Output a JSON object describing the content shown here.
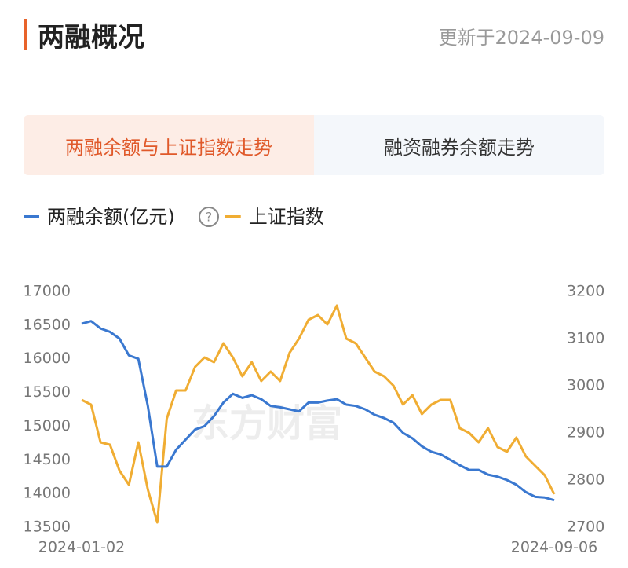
{
  "header": {
    "title": "两融概况",
    "updated": "更新于2024-09-09"
  },
  "tabs": [
    "两融余额与上证指数走势",
    "融资融券余额走势"
  ],
  "chart_data": {
    "type": "line",
    "watermark": "东方财富",
    "categories": [
      "2024-01-02",
      null,
      null,
      null,
      null,
      null,
      null,
      null,
      null,
      null,
      null,
      null,
      null,
      null,
      null,
      null,
      null,
      null,
      null,
      null,
      null,
      null,
      null,
      null,
      null,
      null,
      null,
      null,
      null,
      null,
      null,
      null,
      null,
      null,
      null,
      null,
      null,
      null,
      null,
      null,
      null,
      null,
      null,
      null,
      null,
      null,
      null,
      null,
      null,
      null,
      "2024-09-06"
    ],
    "series": [
      {
        "name": "两融余额(亿元)",
        "color": "#3a78d0",
        "values": [
          16520,
          16560,
          16450,
          16400,
          16300,
          16050,
          16000,
          15300,
          14400,
          14400,
          14650,
          14800,
          14950,
          15000,
          15150,
          15350,
          15480,
          15420,
          15460,
          15400,
          15300,
          15280,
          15250,
          15220,
          15350,
          15350,
          15380,
          15400,
          15320,
          15300,
          15250,
          15170,
          15120,
          15050,
          14900,
          14820,
          14700,
          14620,
          14580,
          14500,
          14420,
          14350,
          14350,
          14280,
          14250,
          14200,
          14130,
          14020,
          13950,
          13940,
          13900
        ]
      },
      {
        "name": "上证指数",
        "color": "#f0ad33",
        "axis": "y2",
        "values": [
          2970,
          2960,
          2880,
          2875,
          2820,
          2790,
          2880,
          2780,
          2710,
          2930,
          2990,
          2990,
          3040,
          3060,
          3050,
          3090,
          3060,
          3020,
          3050,
          3010,
          3030,
          3010,
          3070,
          3100,
          3140,
          3150,
          3130,
          3170,
          3100,
          3090,
          3060,
          3030,
          3020,
          3000,
          2960,
          2980,
          2940,
          2960,
          2970,
          2970,
          2910,
          2900,
          2880,
          2910,
          2870,
          2860,
          2890,
          2850,
          2830,
          2810,
          2770
        ]
      }
    ],
    "ylim": [
      13500,
      17000
    ],
    "yticks": [
      13500,
      14000,
      14500,
      15000,
      15500,
      16000,
      16500,
      17000
    ],
    "y2lim": [
      2700,
      3200
    ],
    "y2ticks": [
      2700,
      2800,
      2900,
      3000,
      3100,
      3200
    ]
  }
}
